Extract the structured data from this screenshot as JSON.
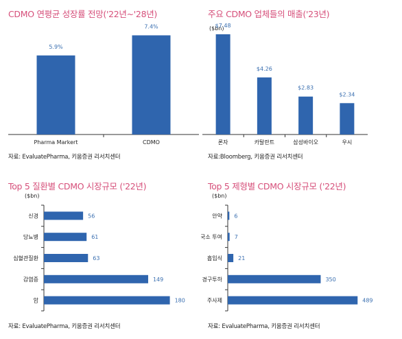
{
  "colors": {
    "bar": "#2f65ae",
    "title": "#d64f7a",
    "label": "#3a6fb0"
  },
  "chart_data": [
    {
      "type": "bar",
      "title": "CDMO 연평균 성장률 전망('22년~'28년)",
      "source": "자료: EvaluatePharma, 키움증권 리서치센터",
      "unit": "",
      "orientation": "vertical",
      "categories": [
        "Pharma Markert",
        "CDMO"
      ],
      "values": [
        5.9,
        7.4
      ],
      "value_labels": [
        "5.9%",
        "7.4%"
      ],
      "ylim": [
        0,
        8.5
      ]
    },
    {
      "type": "bar",
      "title": "주요 CDMO 업체들의 매출('23년)",
      "source": "자료:Bloomberg, 키움증권 리서치센터",
      "unit": "($bn)",
      "orientation": "vertical",
      "categories": [
        "론자",
        "카탈란트",
        "삼성바이오",
        "우시"
      ],
      "values": [
        7.48,
        4.26,
        2.83,
        2.34
      ],
      "value_labels": [
        "$7.48",
        "$4.26",
        "$2.83",
        "$2.34"
      ],
      "ylim": [
        0,
        8.5
      ]
    },
    {
      "type": "bar",
      "title": "Top 5 질환별 CDMO 시장규모 ('22년)",
      "source": "자료: EvaluatePharma, 키움증권 리서치센터",
      "unit": "($bn)",
      "orientation": "horizontal",
      "categories": [
        "신경",
        "당뇨병",
        "심혈관질환",
        "감염증",
        "암"
      ],
      "values": [
        56,
        61,
        63,
        149,
        180
      ],
      "value_labels": [
        "56",
        "61",
        "63",
        "149",
        "180"
      ],
      "xlim": [
        0,
        200
      ]
    },
    {
      "type": "bar",
      "title": "Top 5 제형별 CDMO 시장규모 ('22년)",
      "source": "자료: EvaluatePharma, 키움증권 리서치센터",
      "unit": "($bn)",
      "orientation": "horizontal",
      "categories": [
        "안약",
        "국소 투여",
        "흡입식",
        "경구투하",
        "주사제"
      ],
      "values": [
        6,
        7,
        21,
        350,
        489
      ],
      "value_labels": [
        "6",
        "7",
        "21",
        "350",
        "489"
      ],
      "xlim": [
        0,
        540
      ]
    }
  ]
}
